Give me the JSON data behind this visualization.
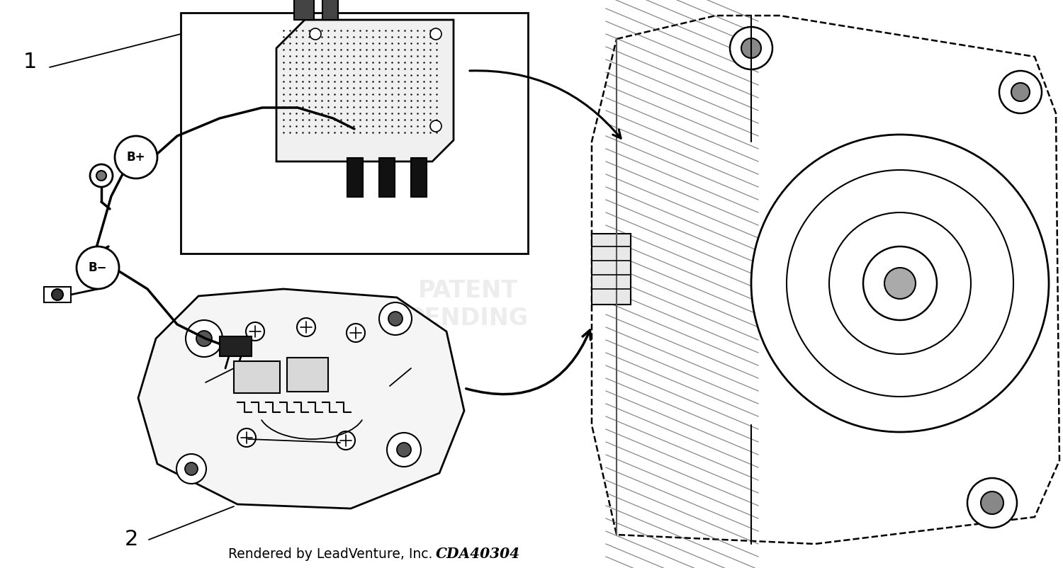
{
  "background_color": "#ffffff",
  "fig_width": 15.0,
  "fig_height": 8.02,
  "bottom_text_normal": "Rendered by LeadVenture, Inc.",
  "bottom_text_bold": "CDA40304",
  "label_1": "1",
  "label_2": "2",
  "label_Bplus": "B+",
  "label_Bminus": "B−",
  "line_color": "#000000"
}
